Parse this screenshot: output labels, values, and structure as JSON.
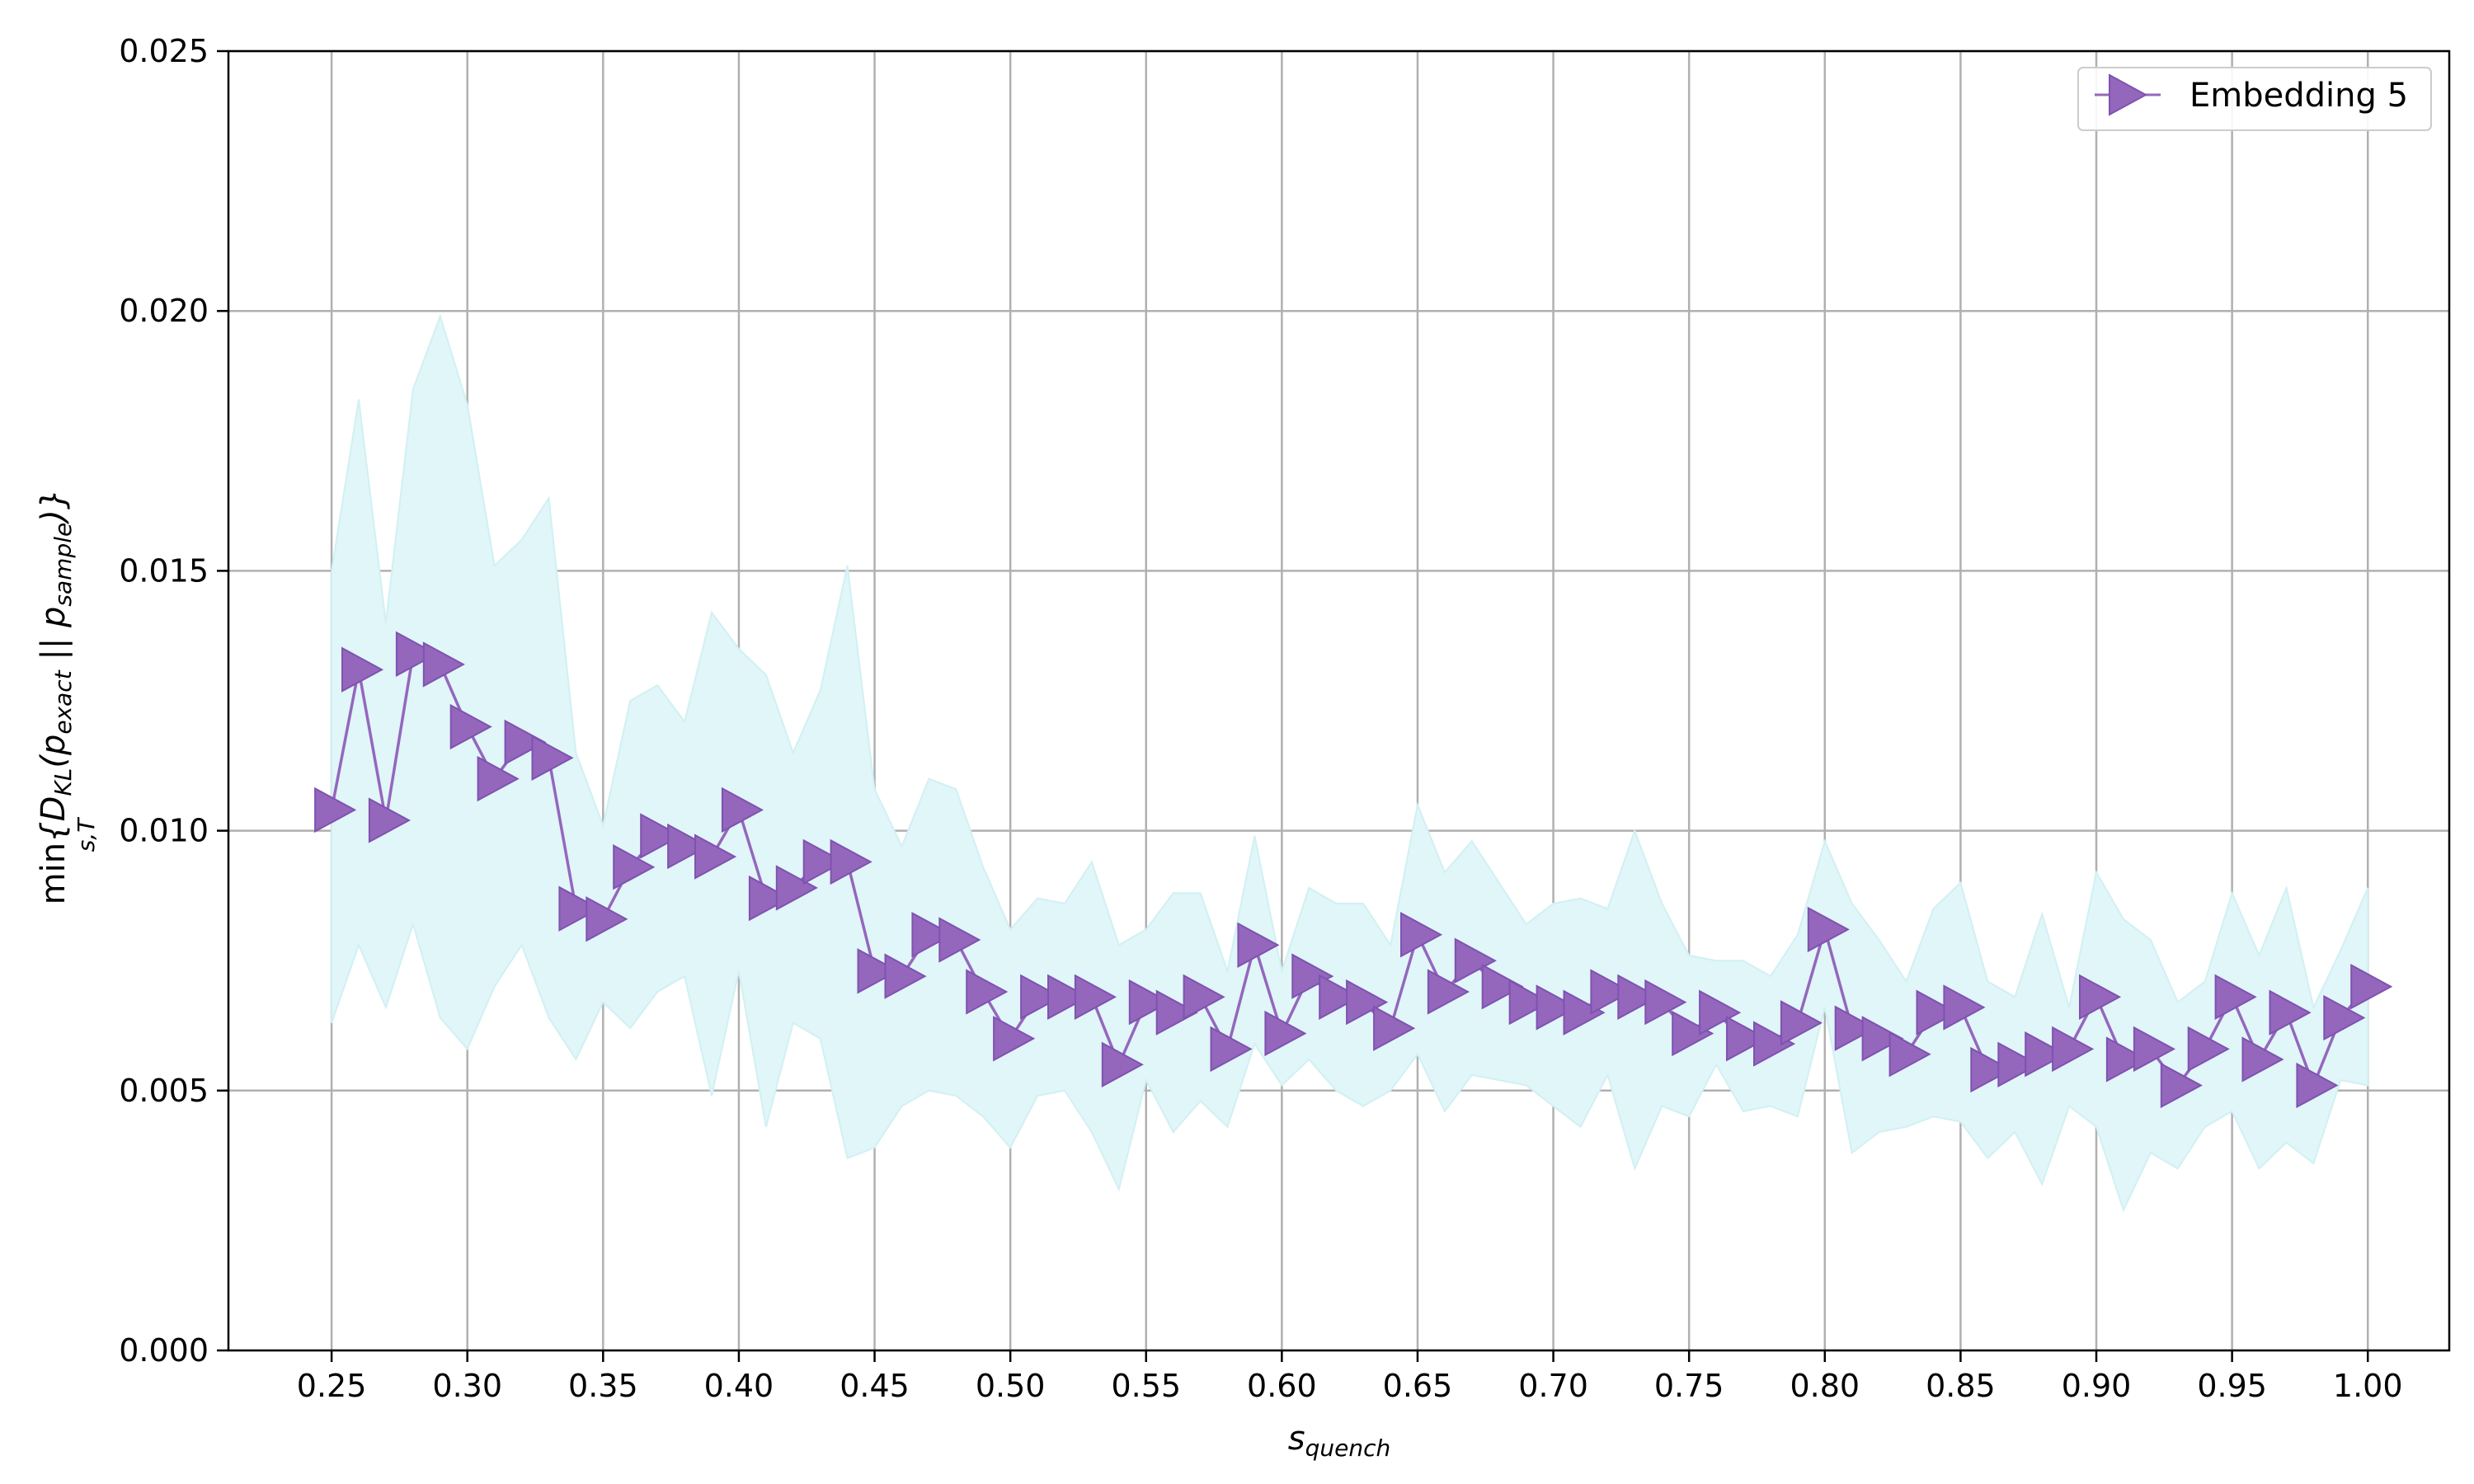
{
  "chart_data": {
    "type": "line",
    "xlabel": "s",
    "xlabel_sub": "quench",
    "ylabel_prefix": "min",
    "ylabel_sub": "s,T",
    "ylabel_open": "{D",
    "ylabel_d_sub": "KL",
    "ylabel_mid1": "(p",
    "ylabel_p1_sub": "exact",
    "ylabel_mid2": " || p",
    "ylabel_p2_sub": "sample",
    "ylabel_close": ")}",
    "xlim": [
      0.212,
      1.03
    ],
    "ylim": [
      0,
      0.025
    ],
    "xticks": [
      "0.25",
      "0.30",
      "0.35",
      "0.40",
      "0.45",
      "0.50",
      "0.55",
      "0.60",
      "0.65",
      "0.70",
      "0.75",
      "0.80",
      "0.85",
      "0.90",
      "0.95",
      "1.00"
    ],
    "yticks": [
      "0.000",
      "0.005",
      "0.010",
      "0.015",
      "0.020",
      "0.025"
    ],
    "grid": true,
    "legend_position": "top-right",
    "colors": {
      "line": "#9467bd",
      "band": "#e0f6f8",
      "grid": "#b0b0b0"
    },
    "x": [
      0.25,
      0.26,
      0.27,
      0.28,
      0.29,
      0.3,
      0.31,
      0.32,
      0.33,
      0.34,
      0.35,
      0.36,
      0.37,
      0.38,
      0.39,
      0.4,
      0.41,
      0.42,
      0.43,
      0.44,
      0.45,
      0.46,
      0.47,
      0.48,
      0.49,
      0.5,
      0.51,
      0.52,
      0.53,
      0.54,
      0.55,
      0.56,
      0.57,
      0.58,
      0.59,
      0.6,
      0.61,
      0.62,
      0.63,
      0.64,
      0.65,
      0.66,
      0.67,
      0.68,
      0.69,
      0.7,
      0.71,
      0.72,
      0.73,
      0.74,
      0.75,
      0.76,
      0.77,
      0.78,
      0.79,
      0.8,
      0.81,
      0.82,
      0.83,
      0.84,
      0.85,
      0.86,
      0.87,
      0.88,
      0.89,
      0.9,
      0.91,
      0.92,
      0.93,
      0.94,
      0.95,
      0.96,
      0.97,
      0.98,
      0.99,
      1.0
    ],
    "series": [
      {
        "name": "Embedding 5",
        "marker": "triangle-right",
        "values": [
          0.0104,
          0.0131,
          0.0102,
          0.0134,
          0.0132,
          0.012,
          0.011,
          0.0117,
          0.0114,
          0.0085,
          0.0083,
          0.0093,
          0.0099,
          0.0097,
          0.0095,
          0.0104,
          0.0087,
          0.0089,
          0.0094,
          0.0094,
          0.0073,
          0.0072,
          0.008,
          0.0079,
          0.0069,
          0.006,
          0.0068,
          0.0068,
          0.0068,
          0.0055,
          0.0067,
          0.0065,
          0.0068,
          0.0058,
          0.0078,
          0.0061,
          0.0072,
          0.0068,
          0.0067,
          0.0062,
          0.008,
          0.0069,
          0.0075,
          0.007,
          0.0067,
          0.0066,
          0.0065,
          0.0069,
          0.0068,
          0.0067,
          0.0061,
          0.0065,
          0.006,
          0.0059,
          0.0063,
          0.0081,
          0.0062,
          0.006,
          0.0057,
          0.0065,
          0.0066,
          0.0054,
          0.0055,
          0.0057,
          0.0058,
          0.0068,
          0.0056,
          0.0058,
          0.0051,
          0.0058,
          0.0068,
          0.0056,
          0.0065,
          0.0051,
          0.0064,
          0.007
        ],
        "band_upper": [
          0.015,
          0.0183,
          0.014,
          0.0185,
          0.0199,
          0.0182,
          0.0151,
          0.0156,
          0.0164,
          0.0115,
          0.0101,
          0.0125,
          0.0128,
          0.0121,
          0.0142,
          0.0135,
          0.013,
          0.0115,
          0.0127,
          0.0151,
          0.0108,
          0.0097,
          0.011,
          0.0108,
          0.0093,
          0.0081,
          0.0087,
          0.0086,
          0.0094,
          0.0078,
          0.0081,
          0.0088,
          0.0088,
          0.0073,
          0.0099,
          0.0073,
          0.0089,
          0.0086,
          0.0086,
          0.0078,
          0.0105,
          0.0092,
          0.0098,
          0.009,
          0.0082,
          0.0086,
          0.0087,
          0.0085,
          0.01,
          0.0086,
          0.0076,
          0.0075,
          0.0075,
          0.0072,
          0.008,
          0.0098,
          0.0086,
          0.0079,
          0.0071,
          0.0085,
          0.009,
          0.0071,
          0.0068,
          0.0084,
          0.0066,
          0.0092,
          0.0083,
          0.0079,
          0.0067,
          0.0071,
          0.0088,
          0.0076,
          0.0089,
          0.0066,
          0.0077,
          0.0089
        ],
        "band_lower": [
          0.0063,
          0.0078,
          0.0066,
          0.0082,
          0.0064,
          0.0058,
          0.007,
          0.0078,
          0.0064,
          0.0056,
          0.0067,
          0.0062,
          0.0069,
          0.0072,
          0.0049,
          0.0073,
          0.0043,
          0.0063,
          0.006,
          0.0037,
          0.0039,
          0.0047,
          0.005,
          0.0049,
          0.0045,
          0.0039,
          0.0049,
          0.005,
          0.0042,
          0.0031,
          0.0052,
          0.0042,
          0.0048,
          0.0043,
          0.0059,
          0.0051,
          0.0056,
          0.005,
          0.0047,
          0.005,
          0.0057,
          0.0046,
          0.0053,
          0.0052,
          0.0051,
          0.0047,
          0.0043,
          0.0053,
          0.0035,
          0.0047,
          0.0045,
          0.0055,
          0.0046,
          0.0047,
          0.0045,
          0.0066,
          0.0038,
          0.0042,
          0.0043,
          0.0045,
          0.0044,
          0.0037,
          0.0042,
          0.0032,
          0.0047,
          0.0043,
          0.0027,
          0.0038,
          0.0035,
          0.0043,
          0.0046,
          0.0035,
          0.004,
          0.0036,
          0.0052,
          0.0051
        ]
      }
    ]
  }
}
